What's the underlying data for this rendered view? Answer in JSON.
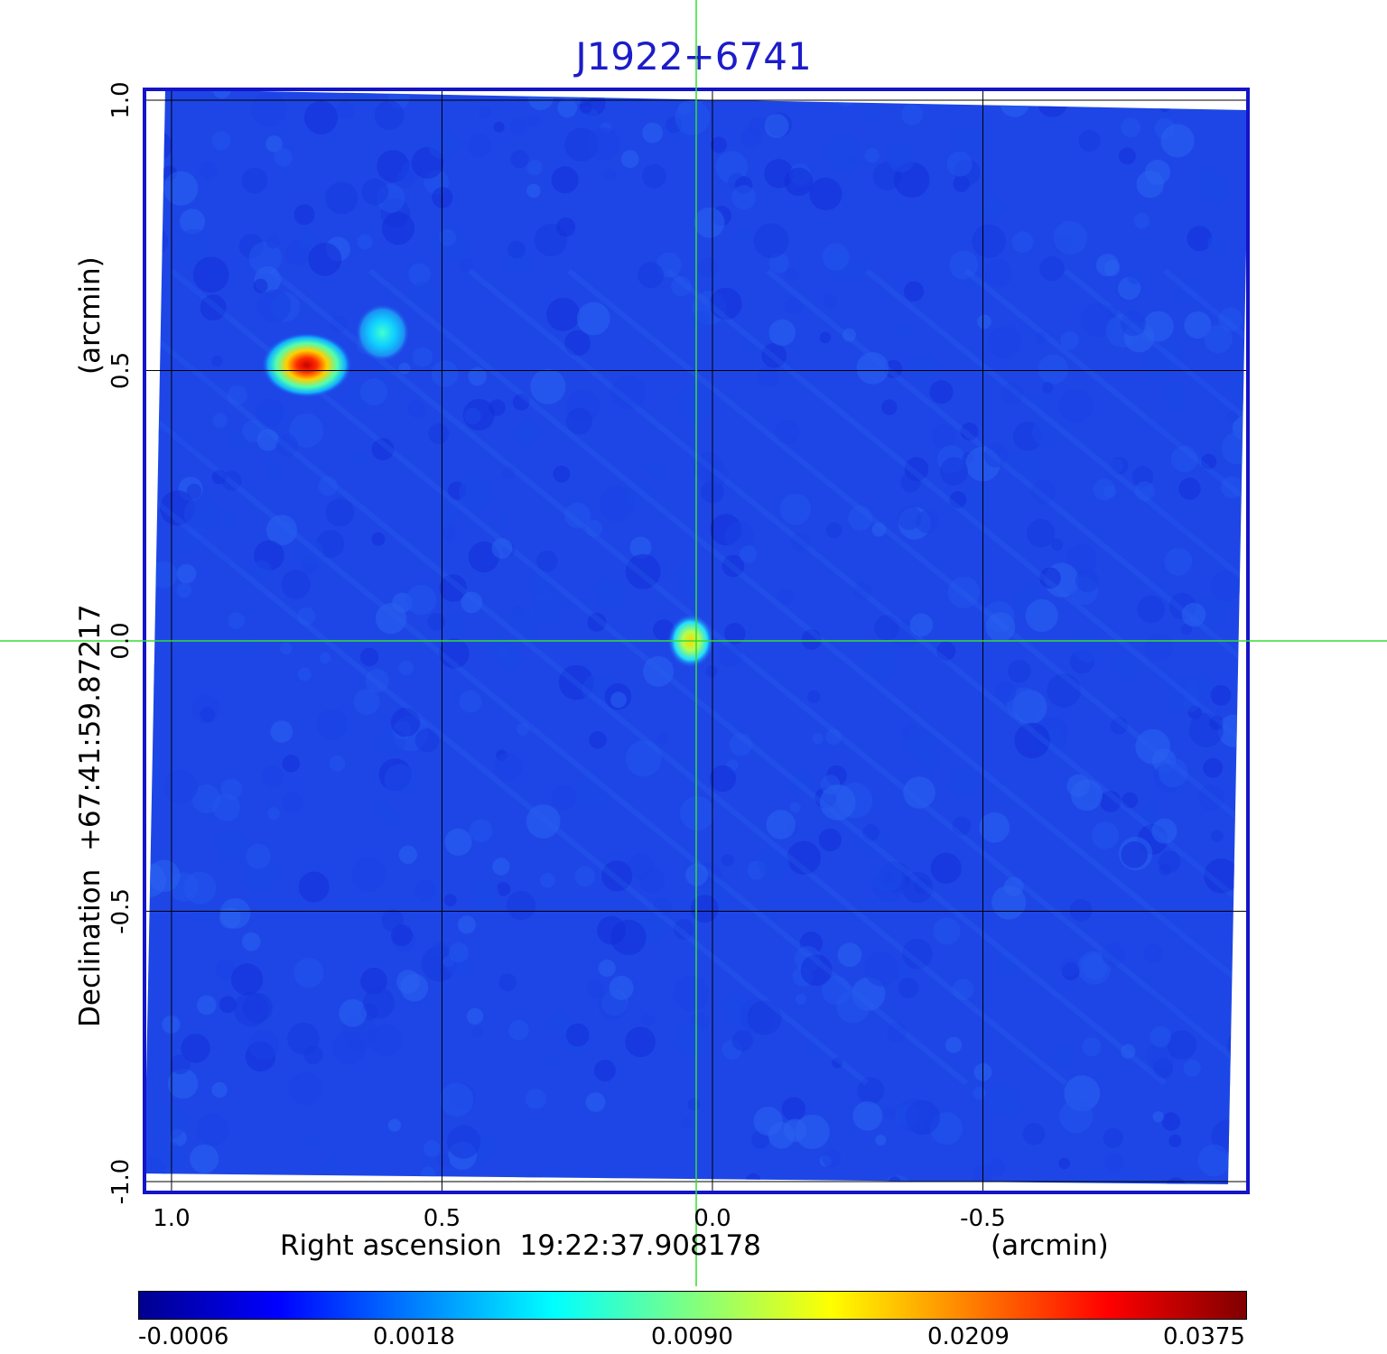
{
  "chart_data": {
    "type": "heatmap",
    "title": "J1922+6741",
    "xlabel": "Right ascension  19:22:37.908178",
    "xunit": "(arcmin)",
    "ylabel": "Declination  +67:41:59.87217",
    "yunit": "(arcmin)",
    "xlim": [
      1.05,
      -0.99
    ],
    "ylim": [
      -1.02,
      1.02
    ],
    "x_ticks": [
      {
        "value": 1.0,
        "label": "1.0"
      },
      {
        "value": 0.5,
        "label": "0.5"
      },
      {
        "value": 0.0,
        "label": "0.0"
      },
      {
        "value": -0.5,
        "label": "-0.5"
      }
    ],
    "y_ticks": [
      {
        "value": 1.0,
        "label": "1.0"
      },
      {
        "value": 0.5,
        "label": "0.5"
      },
      {
        "value": 0.0,
        "label": "0.0"
      },
      {
        "value": -0.5,
        "label": "-0.5"
      },
      {
        "value": -1.0,
        "label": "-1.0"
      }
    ],
    "grid": true,
    "crosshair": {
      "x": 0.03,
      "y": 0.0,
      "color": "#33dd33"
    },
    "sources": [
      {
        "x": 0.75,
        "y": 0.51,
        "peak": 0.0375
      },
      {
        "x": 0.61,
        "y": 0.57,
        "peak": 0.006
      },
      {
        "x": 0.04,
        "y": 0.0,
        "peak": 0.02
      }
    ],
    "colorbar": {
      "colormap": "jet",
      "ticks": [
        "-0.0006",
        "0.0018",
        "0.0090",
        "0.0209",
        "0.0375"
      ]
    }
  },
  "colors": {
    "frame": "#1414c8",
    "background": "#1e46e6",
    "title": "#1c1cc8"
  }
}
